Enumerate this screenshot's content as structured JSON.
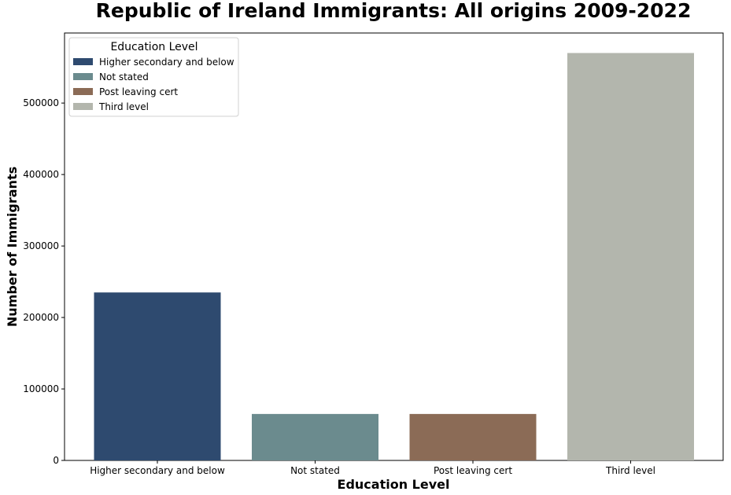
{
  "chart_data": {
    "type": "bar",
    "title": "Republic of Ireland Immigrants: All origins 2009-2022",
    "xlabel": "Education Level",
    "ylabel": "Number of Immigrants",
    "categories": [
      "Higher secondary and below",
      "Not stated",
      "Post leaving cert",
      "Third level"
    ],
    "values": [
      235000,
      65000,
      65000,
      570000
    ],
    "colors": [
      "#2e4a6f",
      "#6b8b8e",
      "#8b6b56",
      "#b3b6ad"
    ],
    "ylim": [
      0,
      598000
    ],
    "yticks": [
      0,
      100000,
      200000,
      300000,
      400000,
      500000
    ],
    "ytick_labels": [
      "0",
      "100000",
      "200000",
      "300000",
      "400000",
      "500000"
    ],
    "grid": false,
    "legend": {
      "title": "Education Level",
      "placement": "top-left",
      "entries": [
        "Higher secondary and below",
        "Not stated",
        "Post leaving cert",
        "Third level"
      ]
    }
  }
}
